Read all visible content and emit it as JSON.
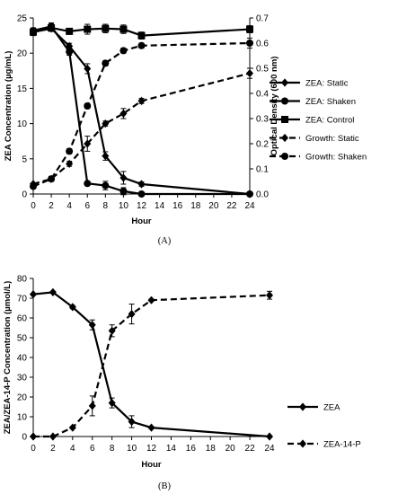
{
  "figure": {
    "panel_a_caption": "(A)",
    "panel_b_caption": "(B)"
  },
  "chart_data": [
    {
      "type": "line",
      "panel": "A",
      "xlabel": "Hour",
      "ylabel": "ZEA Concentration (µg/mL)",
      "y2label": "Optical Density (600 nm)",
      "x": [
        0,
        2,
        4,
        6,
        8,
        10,
        12,
        24
      ],
      "xticks": [
        0,
        2,
        4,
        6,
        8,
        10,
        12,
        14,
        16,
        18,
        20,
        22,
        24
      ],
      "ylim": [
        0,
        25
      ],
      "yticks": [
        0,
        5,
        10,
        15,
        20,
        25
      ],
      "y2lim": [
        0,
        0.7
      ],
      "y2ticks": [
        0.0,
        0.1,
        0.2,
        0.3,
        0.4,
        0.5,
        0.6,
        0.7
      ],
      "legend_position": "right",
      "series": [
        {
          "name": "ZEA: Static",
          "axis": "left",
          "marker": "diamond",
          "dash": "solid",
          "x": [
            0,
            2,
            4,
            6,
            8,
            10,
            12,
            24
          ],
          "values": [
            23.0,
            23.5,
            21.0,
            17.8,
            5.4,
            2.3,
            1.4,
            0.0
          ],
          "errors": [
            0.4,
            0.4,
            0.4,
            0.7,
            0.6,
            0.9,
            0.3,
            0.0
          ]
        },
        {
          "name": "ZEA: Shaken",
          "axis": "left",
          "marker": "circle",
          "dash": "solid",
          "x": [
            0,
            2,
            4,
            6,
            8,
            10,
            12,
            24
          ],
          "values": [
            23.2,
            23.8,
            20.2,
            1.5,
            1.2,
            0.4,
            0.0,
            0.0
          ],
          "errors": [
            0.4,
            0.5,
            0.5,
            0.2,
            0.6,
            0.5,
            0.0,
            0.0
          ]
        },
        {
          "name": "ZEA: Control",
          "axis": "left",
          "marker": "square",
          "dash": "solid",
          "x": [
            0,
            2,
            4,
            6,
            8,
            10,
            12,
            24
          ],
          "values": [
            23.0,
            23.6,
            23.1,
            23.4,
            23.5,
            23.4,
            22.5,
            23.4
          ],
          "errors": [
            0.5,
            0.5,
            0.4,
            0.7,
            0.6,
            0.6,
            0.5,
            0.5
          ]
        },
        {
          "name": "Growth: Static",
          "axis": "right",
          "marker": "diamond",
          "dash": "dashed",
          "x": [
            0,
            2,
            4,
            6,
            8,
            10,
            12,
            24
          ],
          "values": [
            0.04,
            0.06,
            0.12,
            0.2,
            0.28,
            0.32,
            0.37,
            0.48
          ],
          "errors": [
            0.0,
            0.01,
            0.01,
            0.03,
            0.01,
            0.02,
            0.01,
            0.02
          ]
        },
        {
          "name": "Growth: Shaken",
          "axis": "right",
          "marker": "circle",
          "dash": "dashed",
          "x": [
            0,
            2,
            4,
            6,
            8,
            10,
            12,
            24
          ],
          "values": [
            0.03,
            0.06,
            0.17,
            0.35,
            0.52,
            0.57,
            0.59,
            0.6
          ],
          "errors": [
            0.0,
            0.01,
            0.01,
            0.01,
            0.01,
            0.01,
            0.01,
            0.02
          ]
        }
      ]
    },
    {
      "type": "line",
      "panel": "B",
      "xlabel": "Hour",
      "ylabel": "ZEA/ZEA-14-P Concentration (µmol/L)",
      "x": [
        0,
        2,
        4,
        6,
        8,
        10,
        12,
        24
      ],
      "xticks": [
        0,
        2,
        4,
        6,
        8,
        10,
        12,
        14,
        16,
        18,
        20,
        22,
        24
      ],
      "ylim": [
        0,
        80
      ],
      "yticks": [
        0,
        10,
        20,
        30,
        40,
        50,
        60,
        70,
        80
      ],
      "legend_position": "right",
      "series": [
        {
          "name": "ZEA",
          "marker": "diamond",
          "dash": "solid",
          "x": [
            0,
            2,
            4,
            6,
            8,
            10,
            12,
            24
          ],
          "values": [
            72.0,
            73.0,
            65.5,
            56.5,
            17.0,
            7.5,
            4.5,
            0.0
          ],
          "errors": [
            0.5,
            0.5,
            0.8,
            2.5,
            2.5,
            3.0,
            0.5,
            0.0
          ]
        },
        {
          "name": "ZEA-14-P",
          "marker": "diamond",
          "dash": "dashed",
          "x": [
            0,
            2,
            4,
            6,
            8,
            10,
            12,
            24
          ],
          "values": [
            0.0,
            0.0,
            4.5,
            15.5,
            53.5,
            62.0,
            69.0,
            71.5
          ],
          "errors": [
            0.0,
            0.0,
            0.5,
            5.0,
            3.0,
            5.0,
            0.5,
            2.0
          ]
        }
      ]
    }
  ]
}
